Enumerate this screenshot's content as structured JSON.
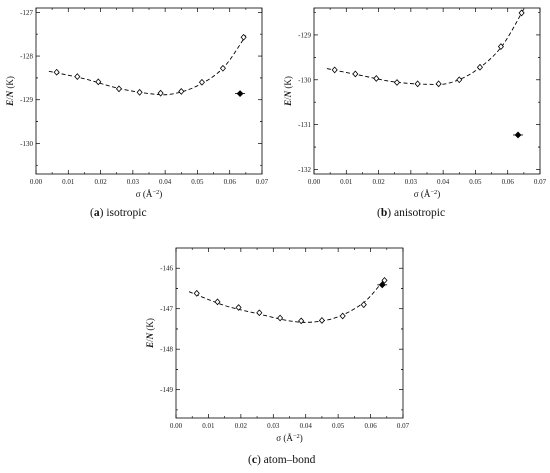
{
  "chart_data": [
    {
      "type": "scatter",
      "caption_letter": "a",
      "caption_text": "isotropic",
      "xlabel": "σ (Å",
      "xlabel_sup": "−2",
      "xlabel_end": ")",
      "ylabel_main": "E",
      "ylabel_slash": "/",
      "ylabel_n": "N",
      "ylabel_unit": " (K)",
      "xlim": [
        0.0,
        0.07
      ],
      "ylim": [
        -130.7,
        -126.9
      ],
      "xticks": [
        "0.00",
        "0.01",
        "0.02",
        "0.03",
        "0.04",
        "0.05",
        "0.06",
        "0.07"
      ],
      "yticks": [
        -127,
        -128,
        -129,
        -130
      ],
      "points": {
        "x": [
          0.0064,
          0.0128,
          0.0193,
          0.0257,
          0.0321,
          0.0386,
          0.045,
          0.0514,
          0.0579,
          0.0643
        ],
        "y": [
          -128.37,
          -128.47,
          -128.59,
          -128.75,
          -128.83,
          -128.85,
          -128.81,
          -128.6,
          -128.28,
          -127.57
        ]
      },
      "fit": {
        "x": [
          0.004,
          0.015,
          0.025,
          0.035,
          0.042,
          0.05,
          0.058,
          0.065
        ],
        "y": [
          -128.35,
          -128.52,
          -128.73,
          -128.86,
          -128.87,
          -128.68,
          -128.27,
          -127.53
        ]
      },
      "reference": {
        "x": 0.0632,
        "y": -128.86
      }
    },
    {
      "type": "scatter",
      "caption_letter": "b",
      "caption_text": "anisotropic",
      "xlabel": "σ (Å",
      "xlabel_sup": "−2",
      "xlabel_end": ")",
      "ylabel_main": "E",
      "ylabel_slash": "/",
      "ylabel_n": "N",
      "ylabel_unit": " (K)",
      "xlim": [
        0.0,
        0.07
      ],
      "ylim": [
        -132.1,
        -128.4
      ],
      "xticks": [
        "0.00",
        "0.01",
        "0.02",
        "0.03",
        "0.04",
        "0.05",
        "0.06",
        "0.07"
      ],
      "yticks": [
        -129,
        -130,
        -131,
        -132
      ],
      "points": {
        "x": [
          0.0064,
          0.0128,
          0.0193,
          0.0257,
          0.0321,
          0.0386,
          0.045,
          0.0514,
          0.0579,
          0.0643
        ],
        "y": [
          -129.78,
          -129.87,
          -129.97,
          -130.06,
          -130.09,
          -130.09,
          -130.0,
          -129.72,
          -129.26,
          -128.51
        ]
      },
      "fit": {
        "x": [
          0.004,
          0.015,
          0.025,
          0.035,
          0.042,
          0.05,
          0.058,
          0.065
        ],
        "y": [
          -129.75,
          -129.91,
          -130.05,
          -130.1,
          -130.07,
          -129.8,
          -129.27,
          -128.42
        ]
      },
      "reference": {
        "x": 0.0632,
        "y": -131.23
      }
    },
    {
      "type": "scatter",
      "caption_letter": "c",
      "caption_text": "atom–bond",
      "xlabel": "σ (Å",
      "xlabel_sup": "−2",
      "xlabel_end": ")",
      "ylabel_main": "E",
      "ylabel_slash": "/",
      "ylabel_n": "N",
      "ylabel_unit": " (K)",
      "xlim": [
        0.0,
        0.07
      ],
      "ylim": [
        -149.7,
        -145.5
      ],
      "xticks": [
        "0.00",
        "0.01",
        "0.02",
        "0.03",
        "0.04",
        "0.05",
        "0.06",
        "0.07"
      ],
      "yticks": [
        -146,
        -147,
        -148,
        -149
      ],
      "points": {
        "x": [
          0.0064,
          0.0128,
          0.0193,
          0.0257,
          0.0321,
          0.0386,
          0.045,
          0.0514,
          0.0579,
          0.0643
        ],
        "y": [
          -146.62,
          -146.83,
          -146.97,
          -147.1,
          -147.23,
          -147.3,
          -147.29,
          -147.18,
          -146.9,
          -146.3
        ]
      },
      "fit": {
        "x": [
          0.004,
          0.015,
          0.025,
          0.035,
          0.042,
          0.05,
          0.058,
          0.064
        ],
        "y": [
          -146.58,
          -146.92,
          -147.12,
          -147.3,
          -147.33,
          -147.2,
          -146.84,
          -146.3
        ]
      },
      "reference": {
        "x": 0.0636,
        "y": -146.41
      }
    }
  ]
}
